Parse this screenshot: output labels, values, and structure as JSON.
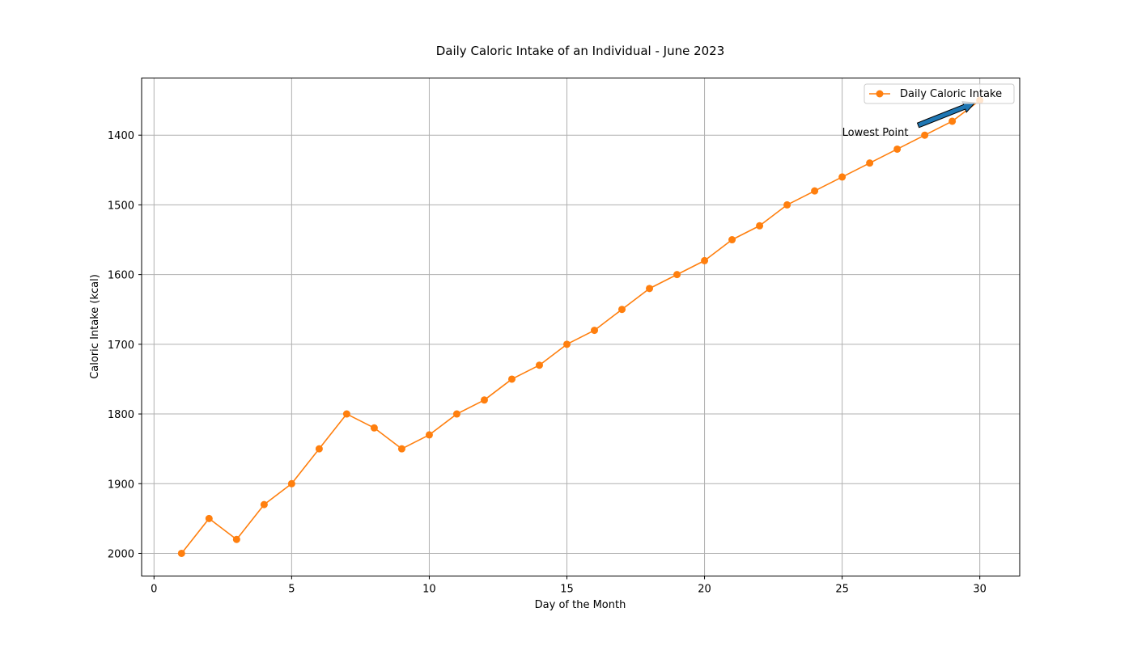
{
  "chart_data": {
    "type": "line",
    "title": "Daily Caloric Intake of an Individual - June 2023",
    "xlabel": "Day of the Month",
    "ylabel": "Caloric Intake (kcal)",
    "xlim": [
      -0.45,
      31.45
    ],
    "ylim": [
      2032.5,
      1318
    ],
    "y_inverted": true,
    "x_ticks": [
      0,
      5,
      10,
      15,
      20,
      25,
      30
    ],
    "y_ticks": [
      1400,
      1500,
      1600,
      1700,
      1800,
      1900,
      2000
    ],
    "grid": true,
    "legend_position": "top-right",
    "colors": {
      "series": "#ff7f0e",
      "grid": "#b0b0b0",
      "arrow_fill": "#1f77b4",
      "arrow_edge": "#000000"
    },
    "x": [
      1,
      2,
      3,
      4,
      5,
      6,
      7,
      8,
      9,
      10,
      11,
      12,
      13,
      14,
      15,
      16,
      17,
      18,
      19,
      20,
      21,
      22,
      23,
      24,
      25,
      26,
      27,
      28,
      29,
      30
    ],
    "series": [
      {
        "name": "Daily Caloric Intake",
        "values": [
          2000,
          1950,
          1980,
          1930,
          1900,
          1850,
          1800,
          1820,
          1850,
          1830,
          1800,
          1780,
          1750,
          1730,
          1700,
          1680,
          1650,
          1620,
          1600,
          1580,
          1550,
          1530,
          1500,
          1480,
          1460,
          1440,
          1420,
          1400,
          1380,
          1350
        ]
      }
    ],
    "annotation": {
      "text": "Lowest Point",
      "target": [
        30,
        1350
      ],
      "text_anchor": [
        25,
        1395
      ]
    }
  }
}
